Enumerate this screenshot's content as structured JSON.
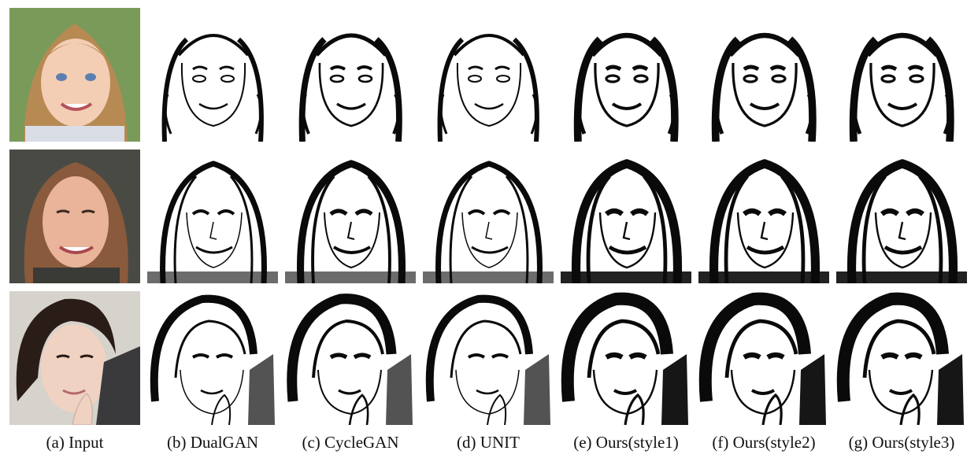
{
  "figure": {
    "columns": [
      {
        "id": "a",
        "caption": "(a) Input"
      },
      {
        "id": "b",
        "caption": "(b) DualGAN"
      },
      {
        "id": "c",
        "caption": "(c) CycleGAN"
      },
      {
        "id": "d",
        "caption": "(d) UNIT"
      },
      {
        "id": "e",
        "caption": "(e) Ours(style1)"
      },
      {
        "id": "f",
        "caption": "(f) Ours(style2)"
      },
      {
        "id": "g",
        "caption": "(g) Ours(style3)"
      }
    ],
    "rows": [
      {
        "subject": "child-blonde-hair"
      },
      {
        "subject": "woman-long-hair"
      },
      {
        "subject": "woman-dark-hair-hand-to-chin"
      }
    ],
    "colors": {
      "ink": "#0a0a0a",
      "paper": "#ffffff",
      "row1_bg": "#7a9a5a",
      "row1_hair": "#b68a52",
      "row1_skin": "#f3cdb4",
      "row2_bg": "#4a4a44",
      "row2_hair": "#8a5a3c",
      "row2_skin": "#e9b49a",
      "row3_bg": "#d6d2cc",
      "row3_hair": "#2a1c16",
      "row3_skin": "#efd2c2"
    }
  }
}
